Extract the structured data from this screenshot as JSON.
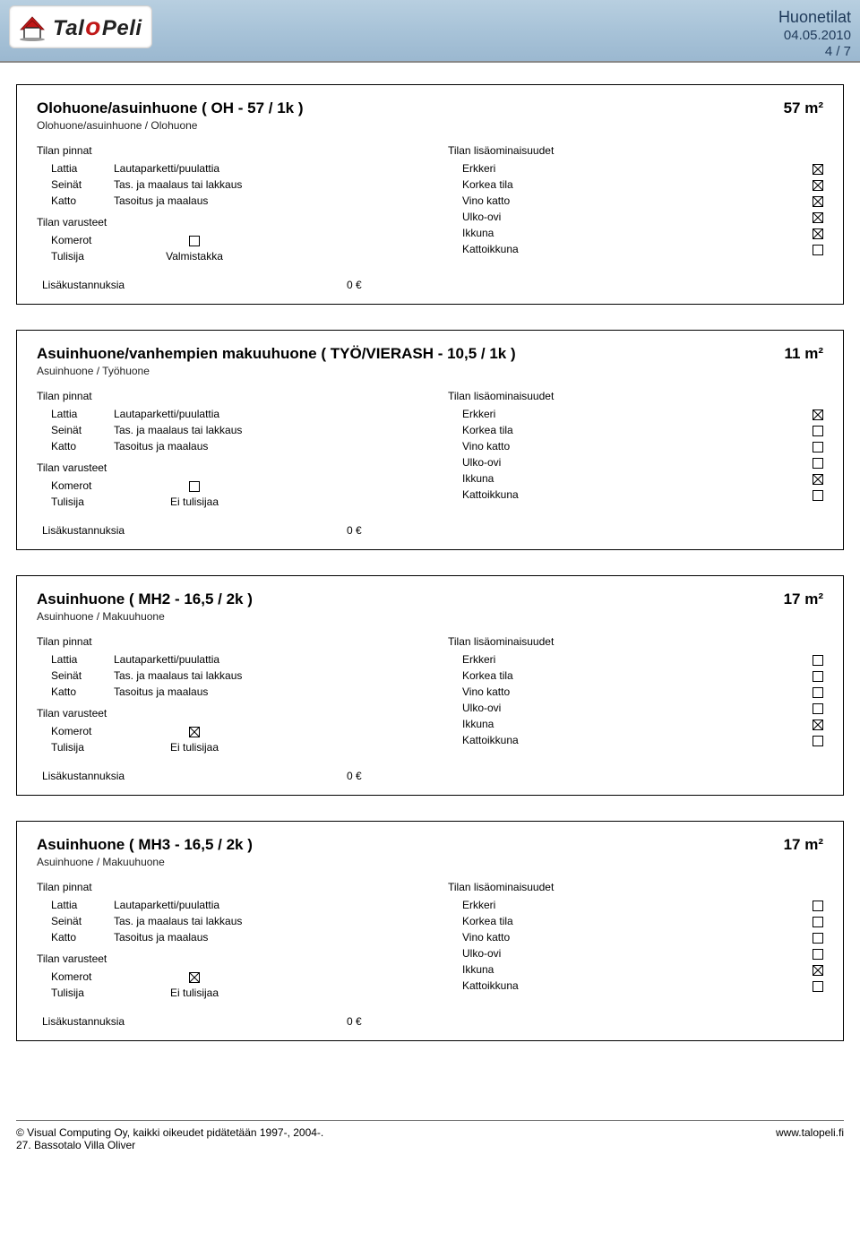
{
  "header": {
    "logo_text": {
      "part1": "Tal",
      "o": "o",
      "part2": "Peli"
    },
    "title": "Huonetilat",
    "date": "04.05.2010",
    "page": "4 / 7"
  },
  "labels": {
    "surfaces_head": "Tilan pinnat",
    "equip_head": "Tilan varusteet",
    "features_head": "Tilan lisäominaisuudet",
    "floor": "Lattia",
    "walls": "Seinät",
    "ceiling": "Katto",
    "closets": "Komerot",
    "fireplace": "Tulisija",
    "bay": "Erkkeri",
    "raised": "Korkea tila",
    "sloped": "Vino katto",
    "ext_door": "Ulko-ovi",
    "window": "Ikkuna",
    "skylight": "Kattoikkuna",
    "extra_cost": "Lisäkustannuksia",
    "extra_cost_val": "0 €"
  },
  "rooms": [
    {
      "title": "Olohuone/asuinhuone ( OH - 57 / 1k )",
      "area": "57  m²",
      "subtitle": "Olohuone/asuinhuone / Olohuone",
      "floor": "Lautaparketti/puulattia",
      "walls": "Tas. ja maalaus tai lakkaus",
      "ceiling": "Tasoitus ja maalaus",
      "closets": false,
      "fireplace": "Valmistakka",
      "features": {
        "bay": true,
        "raised": true,
        "sloped": true,
        "ext_door": true,
        "window": true,
        "skylight": false
      }
    },
    {
      "title": "Asuinhuone/vanhempien makuuhuone ( TYÖ/VIERASH - 10,5 / 1k )",
      "area": "11  m²",
      "subtitle": "Asuinhuone / Työhuone",
      "floor": "Lautaparketti/puulattia",
      "walls": "Tas. ja maalaus tai lakkaus",
      "ceiling": "Tasoitus ja maalaus",
      "closets": false,
      "fireplace": "Ei tulisijaa",
      "features": {
        "bay": true,
        "raised": false,
        "sloped": false,
        "ext_door": false,
        "window": true,
        "skylight": false
      }
    },
    {
      "title": "Asuinhuone ( MH2 - 16,5 / 2k )",
      "area": "17  m²",
      "subtitle": "Asuinhuone / Makuuhuone",
      "floor": "Lautaparketti/puulattia",
      "walls": "Tas. ja maalaus tai lakkaus",
      "ceiling": "Tasoitus ja maalaus",
      "closets": true,
      "fireplace": "Ei tulisijaa",
      "features": {
        "bay": false,
        "raised": false,
        "sloped": false,
        "ext_door": false,
        "window": true,
        "skylight": false
      }
    },
    {
      "title": "Asuinhuone ( MH3 - 16,5 / 2k )",
      "area": "17  m²",
      "subtitle": "Asuinhuone / Makuuhuone",
      "floor": "Lautaparketti/puulattia",
      "walls": "Tas. ja maalaus tai lakkaus",
      "ceiling": "Tasoitus ja maalaus",
      "closets": true,
      "fireplace": "Ei tulisijaa",
      "features": {
        "bay": false,
        "raised": false,
        "sloped": false,
        "ext_door": false,
        "window": true,
        "skylight": false
      }
    }
  ],
  "footer": {
    "copyright": "© Visual Computing Oy, kaikki oikeudet pidätetään 1997-, 2004-.",
    "project": "27. Bassotalo Villa Oliver",
    "url": "www.talopeli.fi"
  },
  "colors": {
    "band_top": "#b8cfe0",
    "band_bottom": "#9bb8d0",
    "header_text": "#1f3a5a",
    "border": "#000000",
    "logo_red": "#c01818"
  }
}
